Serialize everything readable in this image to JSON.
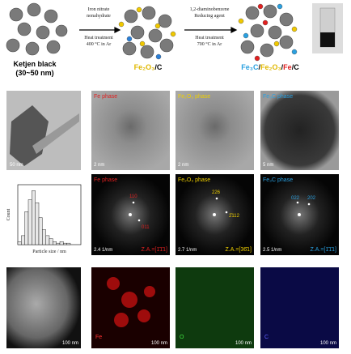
{
  "schematic": {
    "start_label": "Ketjen black",
    "start_sub": "(30~50 nm)",
    "step1": [
      "Iron nitrate",
      "nonahydrate",
      "Heat treatment",
      "400 °C in Ar"
    ],
    "mid_label": [
      "Fe₂O₃",
      "/C"
    ],
    "step2": [
      "1,2-diaminobenzene",
      "Reducing agent",
      "Heat treatment",
      "700 °C in Ar"
    ],
    "end_label": [
      "Fe₃C",
      "/",
      "Fe₂O₃",
      "/",
      "Fe",
      "/C"
    ]
  },
  "tem": [
    {
      "scale": "50 nm"
    },
    {
      "label": "Fe phase",
      "scale": "2 nm"
    },
    {
      "label": "Fe₂O₃ phase",
      "scale": "2 nm"
    },
    {
      "label": "Fe₃C phase",
      "scale": "5 nm"
    }
  ],
  "histogram": {
    "y_label": "Count",
    "x_label": "Particle size / nm",
    "bins": [
      0,
      2.5,
      5,
      7.5,
      10,
      12.5,
      15,
      17.5,
      20,
      22.5,
      25,
      27.5,
      30,
      32.5,
      35,
      37.5,
      40
    ],
    "counts": [
      2,
      6,
      22,
      30,
      36,
      28,
      18,
      10,
      6,
      4,
      2,
      1,
      2,
      1,
      1,
      0
    ],
    "xlim": [
      0,
      45
    ],
    "ylim": [
      0,
      40
    ],
    "color": "#e8e8e8"
  },
  "fft": [
    {
      "label": "Fe phase",
      "spots": [
        "110",
        "011"
      ],
      "scale": "2.4 1/nm",
      "za": "Z.A.=[1̄1̄1]"
    },
    {
      "label": "Fe₂O₃ phase",
      "spots": [
        "226",
        "2̄112"
      ],
      "scale": "2.7 1/nm",
      "za": "Z.A.=[36̄1]"
    },
    {
      "label": "Fe₃C phase",
      "spots": [
        "022",
        "202"
      ],
      "scale": "2.5 1/nm",
      "za": "Z.A.=[1̄1̄1]"
    }
  ],
  "eds": [
    {
      "scale": "100 nm"
    },
    {
      "element": "Fe",
      "scale": "100 nm"
    },
    {
      "element": "O",
      "scale": "100 nm"
    },
    {
      "element": "C",
      "scale": "100 nm"
    }
  ]
}
